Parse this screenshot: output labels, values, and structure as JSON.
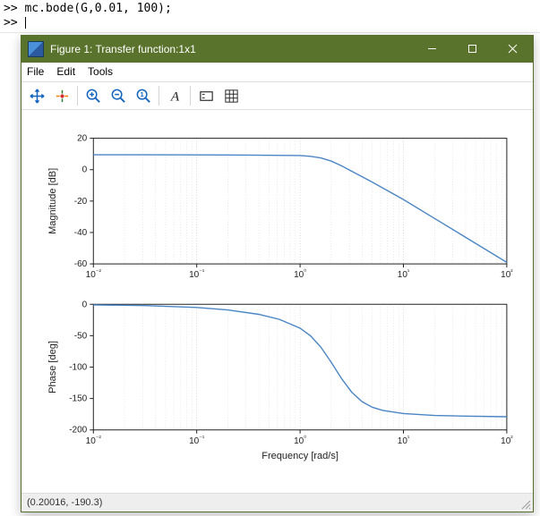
{
  "terminal": {
    "line1": ">> mc.bode(G,0.01, 100);",
    "line2": ">> ",
    "prompt": ">>"
  },
  "window": {
    "title": "Figure 1: Transfer function:1x1",
    "controls": {
      "min": "−",
      "max": "☐",
      "close": "×"
    }
  },
  "menubar": {
    "items": [
      "File",
      "Edit",
      "Tools"
    ]
  },
  "toolbar": {
    "buttons": [
      "move",
      "origin",
      "zoom-in",
      "zoom-out",
      "zoom-reset",
      "text",
      "legend",
      "grid"
    ]
  },
  "statusbar": {
    "coords": "(0.20016, -190.3)"
  },
  "fig": {
    "bg": "#ffffff",
    "line_color": "#4a86c5",
    "grid_color": "#555555",
    "axis_color": "#222222",
    "tick_fontsize": 10,
    "label_fontsize": 11,
    "xlabel": "Frequency [rad/s]",
    "log_ticks": {
      "majors": [
        -2,
        -1,
        0,
        1,
        2
      ],
      "labels": [
        "10⁻²",
        "10⁻¹",
        "10⁰",
        "10¹",
        "10²"
      ]
    },
    "magnitude": {
      "ylabel": "Magnitude [dB]",
      "ylim": [
        -60,
        20
      ],
      "ytick_step": 20,
      "yticks": [
        20,
        0,
        -20,
        -40,
        -60
      ],
      "data": {
        "logx": [
          -2,
          -1.5,
          -1,
          -0.5,
          0,
          0.1,
          0.2,
          0.3,
          0.4,
          0.5,
          0.7,
          1,
          1.3,
          1.6,
          2
        ],
        "y": [
          9.5,
          9.5,
          9.4,
          9.3,
          9,
          8.5,
          7.5,
          5.5,
          2.5,
          -1,
          -8,
          -19,
          -31,
          -43,
          -59
        ]
      }
    },
    "phase": {
      "ylabel": "Phase [deg]",
      "ylim": [
        -200,
        0
      ],
      "ytick_step": 50,
      "yticks": [
        0,
        -50,
        -100,
        -150,
        -200
      ],
      "data": {
        "logx": [
          -2,
          -1.5,
          -1,
          -0.7,
          -0.4,
          -0.2,
          0,
          0.1,
          0.2,
          0.3,
          0.4,
          0.5,
          0.6,
          0.7,
          0.8,
          1,
          1.3,
          1.6,
          2
        ],
        "y": [
          -1,
          -2,
          -5,
          -9,
          -16,
          -24,
          -38,
          -50,
          -68,
          -92,
          -118,
          -140,
          -155,
          -164,
          -169,
          -174,
          -177,
          -178,
          -179
        ]
      }
    }
  }
}
